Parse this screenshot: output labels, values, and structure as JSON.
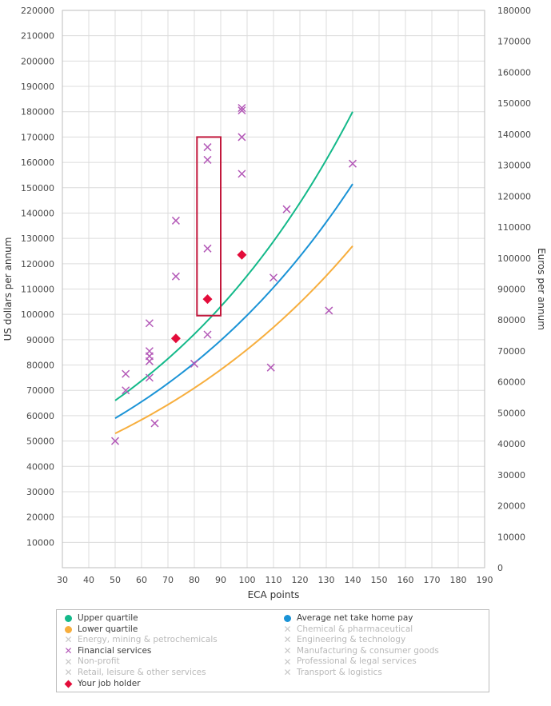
{
  "chart_data": {
    "type": "scatter",
    "xlabel": "ECA points",
    "ylabel": "US dollars per annum",
    "y2label": "Euros per annum",
    "xlim": [
      30,
      190
    ],
    "ylim": [
      0,
      220000
    ],
    "y2lim": [
      0,
      180000
    ],
    "xticks": [
      "30",
      "40",
      "50",
      "60",
      "70",
      "80",
      "90",
      "100",
      "110",
      "120",
      "130",
      "140",
      "150",
      "160",
      "170",
      "180",
      "190"
    ],
    "yticks": [
      "10000",
      "20000",
      "30000",
      "40000",
      "50000",
      "60000",
      "70000",
      "80000",
      "90000",
      "100000",
      "110000",
      "120000",
      "130000",
      "140000",
      "150000",
      "160000",
      "170000",
      "180000",
      "190000",
      "200000",
      "210000",
      "220000"
    ],
    "y2ticks": [
      "0",
      "10000",
      "20000",
      "30000",
      "40000",
      "50000",
      "60000",
      "70000",
      "80000",
      "90000",
      "100000",
      "110000",
      "120000",
      "130000",
      "140000",
      "150000",
      "160000",
      "170000",
      "180000"
    ],
    "curves": [
      {
        "name": "Upper quartile",
        "color": "#14b98a",
        "x_range": [
          50,
          140
        ],
        "y_start": 66000,
        "y_end": 180000
      },
      {
        "name": "Average net take home pay",
        "color": "#1a93d6",
        "x_range": [
          50,
          140
        ],
        "y_start": 59000,
        "y_end": 151500
      },
      {
        "name": "Lower quartile",
        "color": "#f7ae3d",
        "x_range": [
          50,
          140
        ],
        "y_start": 53000,
        "y_end": 127000
      }
    ],
    "series": [
      {
        "name": "Financial services",
        "color": "#b45ab8",
        "marker": "x",
        "points": [
          [
            50,
            50000
          ],
          [
            54,
            70000
          ],
          [
            54,
            76500
          ],
          [
            63,
            75000
          ],
          [
            63,
            81500
          ],
          [
            63,
            83500
          ],
          [
            63,
            85500
          ],
          [
            63,
            96500
          ],
          [
            65,
            57000
          ],
          [
            73,
            137000
          ],
          [
            73,
            115000
          ],
          [
            80,
            80500
          ],
          [
            85,
            92000
          ],
          [
            85,
            126000
          ],
          [
            85,
            161000
          ],
          [
            85,
            166000
          ],
          [
            98,
            155500
          ],
          [
            98,
            170000
          ],
          [
            98,
            180500
          ],
          [
            98,
            181500
          ],
          [
            109,
            79000
          ],
          [
            110,
            114500
          ],
          [
            115,
            141500
          ],
          [
            131,
            101500
          ],
          [
            140,
            159500
          ]
        ]
      },
      {
        "name": "Your job holder",
        "color": "#e30c3a",
        "marker": "diamond",
        "points": [
          [
            73,
            90500
          ],
          [
            85,
            106000
          ],
          [
            98,
            123500
          ]
        ]
      }
    ],
    "highlight_box": {
      "x_range": [
        81,
        90
      ],
      "y_range": [
        99500,
        170000
      ],
      "color": "#c2183c"
    }
  },
  "legend": {
    "left": [
      {
        "label": "Upper quartile",
        "symbol": "dot",
        "color": "#14b98a",
        "faded": false
      },
      {
        "label": "Lower quartile",
        "symbol": "dot",
        "color": "#f7ae3d",
        "faded": false
      },
      {
        "label": "Energy, mining & petrochemicals",
        "symbol": "x",
        "color": "#c8c8c8",
        "faded": true
      },
      {
        "label": "Financial services",
        "symbol": "x",
        "color": "#b45ab8",
        "faded": false
      },
      {
        "label": "Non-profit",
        "symbol": "x",
        "color": "#c8c8c8",
        "faded": true
      },
      {
        "label": "Retail, leisure & other services",
        "symbol": "x",
        "color": "#c8c8c8",
        "faded": true
      },
      {
        "label": "Your job holder",
        "symbol": "diamond",
        "color": "#e30c3a",
        "faded": false
      }
    ],
    "right": [
      {
        "label": "Average net take home pay",
        "symbol": "dot",
        "color": "#1a93d6",
        "faded": false
      },
      {
        "label": "Chemical & pharmaceutical",
        "symbol": "x",
        "color": "#c8c8c8",
        "faded": true
      },
      {
        "label": "Engineering & technology",
        "symbol": "x",
        "color": "#c8c8c8",
        "faded": true
      },
      {
        "label": "Manufacturing & consumer goods",
        "symbol": "x",
        "color": "#c8c8c8",
        "faded": true
      },
      {
        "label": "Professional & legal services",
        "symbol": "x",
        "color": "#c8c8c8",
        "faded": true
      },
      {
        "label": "Transport & logistics",
        "symbol": "x",
        "color": "#c8c8c8",
        "faded": true
      }
    ]
  }
}
